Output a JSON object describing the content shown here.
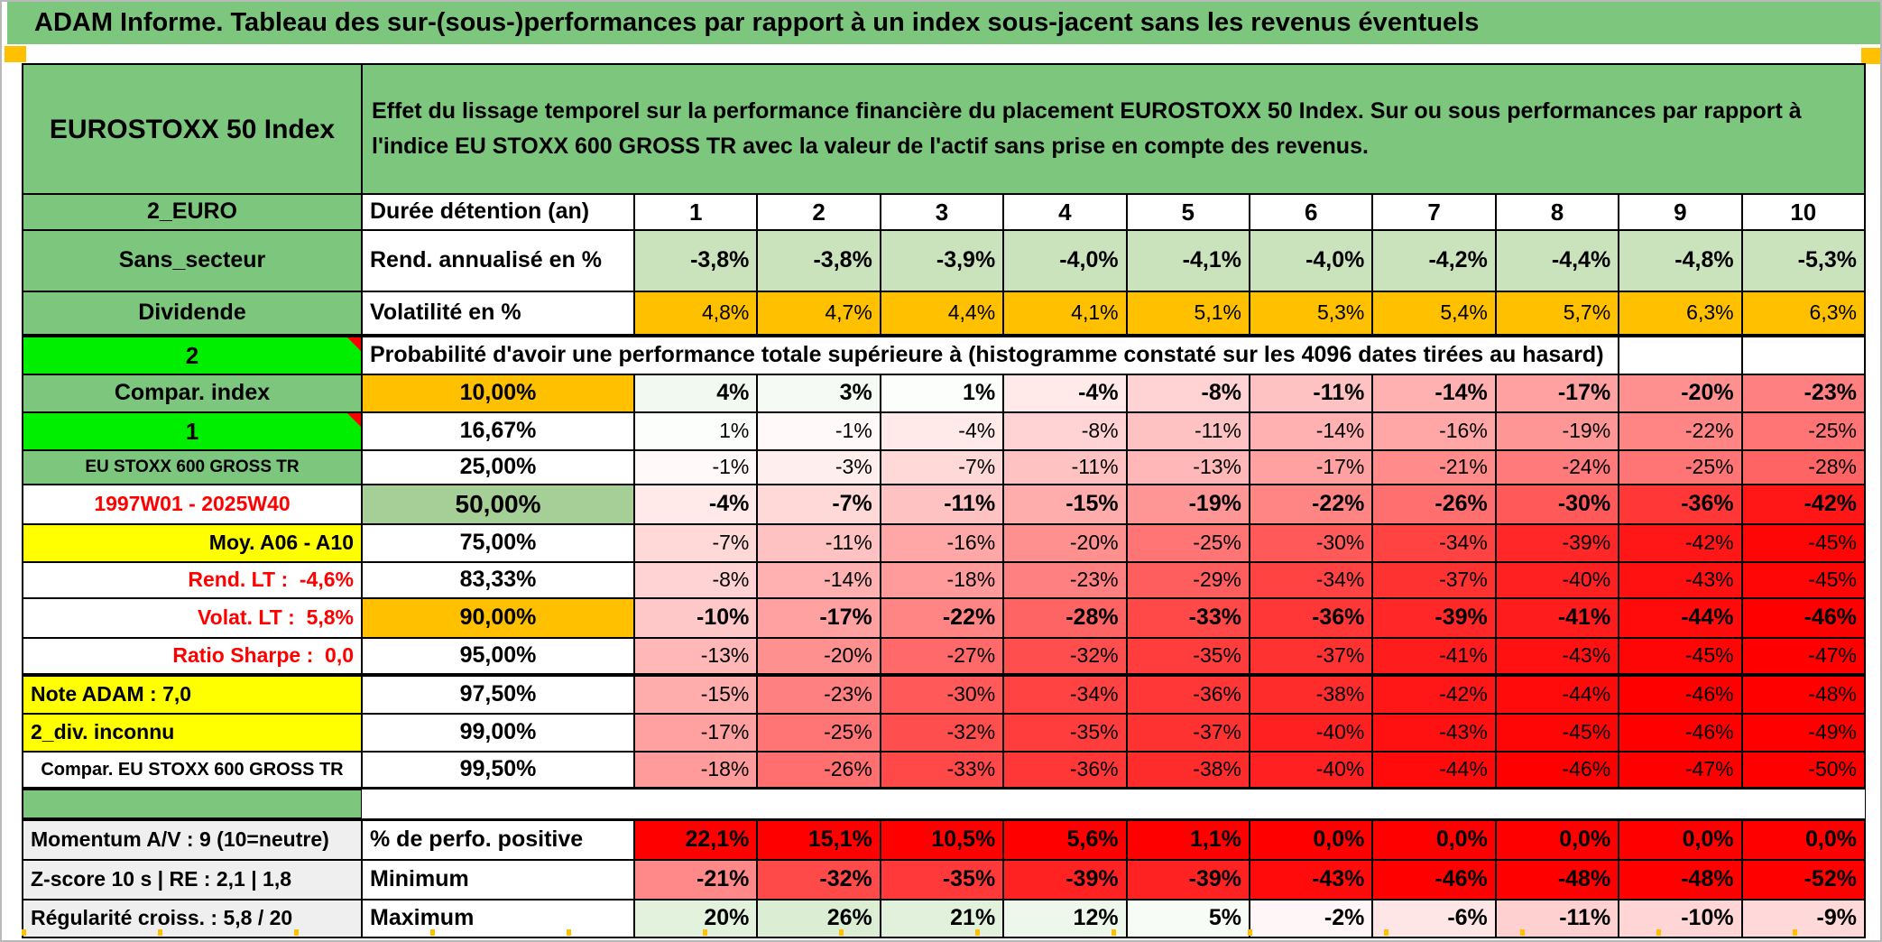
{
  "title": "ADAM Informe. Tableau des sur-(sous-)performances par rapport à un index sous-jacent sans les revenus éventuels",
  "palette": {
    "header_green": "#7DC67E",
    "light_green": "#CAE3BC",
    "mid_green": "#A6CF97",
    "bright_green": "#00EE00",
    "orange": "#FFC000",
    "yellow": "#FFFF00",
    "red": "#FF0000",
    "gray_label": "#EFEFEF"
  },
  "table": {
    "index_name": "EUROSTOXX 50 Index",
    "description": "Effet du lissage temporel sur la performance financière du placement EUROSTOXX 50 Index. Sur ou sous performances par rapport à l'indice EU STOXX 600 GROSS TR avec la valeur de l'actif sans prise en compte des revenus.",
    "years_header": {
      "a": "2_EURO",
      "b": "Durée détention (an)",
      "years": [
        "1",
        "2",
        "3",
        "4",
        "5",
        "6",
        "7",
        "8",
        "9",
        "10"
      ]
    },
    "stat_rows": [
      {
        "a": "Sans_secteur",
        "b": "Rend. annualisé en %",
        "values": [
          "-3,8%",
          "-3,8%",
          "-3,9%",
          "-4,0%",
          "-4,1%",
          "-4,0%",
          "-4,2%",
          "-4,4%",
          "-4,8%",
          "-5,3%"
        ]
      },
      {
        "a": "Dividende",
        "b": "Volatilité en %",
        "values": [
          "4,8%",
          "4,7%",
          "4,4%",
          "4,1%",
          "5,1%",
          "5,3%",
          "5,4%",
          "5,7%",
          "6,3%",
          "6,3%"
        ]
      }
    ],
    "prob_banner": {
      "a": "2",
      "text": "Probabilité d'avoir une performance totale supérieure à (histogramme constaté sur les 4096 dates tirées au hasard)"
    },
    "prob_rows": [
      {
        "a": "Compar. index",
        "b": "10,00%",
        "values": [
          4,
          3,
          1,
          -4,
          -8,
          -11,
          -14,
          -17,
          -20,
          -23
        ]
      },
      {
        "a": "1",
        "b": "16,67%",
        "values": [
          1,
          -1,
          -4,
          -8,
          -11,
          -14,
          -16,
          -19,
          -22,
          -25
        ]
      },
      {
        "a": "EU STOXX 600 GROSS TR",
        "b": "25,00%",
        "values": [
          -1,
          -3,
          -7,
          -11,
          -13,
          -17,
          -21,
          -24,
          -25,
          -28
        ]
      },
      {
        "a": "1997W01 - 2025W40",
        "b": "50,00%",
        "values": [
          -4,
          -7,
          -11,
          -15,
          -19,
          -22,
          -26,
          -30,
          -36,
          -42
        ]
      },
      {
        "a": "Moy. A06 - A10",
        "b": "75,00%",
        "values": [
          -7,
          -11,
          -16,
          -20,
          -25,
          -30,
          -34,
          -39,
          -42,
          -45
        ]
      },
      {
        "a": "Rend. LT :  -4,6%",
        "b": "83,33%",
        "values": [
          -8,
          -14,
          -18,
          -23,
          -29,
          -34,
          -37,
          -40,
          -43,
          -45
        ]
      },
      {
        "a": "Volat. LT :  5,8%",
        "b": "90,00%",
        "values": [
          -10,
          -17,
          -22,
          -28,
          -33,
          -36,
          -39,
          -41,
          -44,
          -46
        ]
      },
      {
        "a": "Ratio Sharpe :  0,0",
        "b": "95,00%",
        "values": [
          -13,
          -20,
          -27,
          -32,
          -35,
          -37,
          -41,
          -43,
          -45,
          -47
        ]
      },
      {
        "a": "Note ADAM : 7,0",
        "b": "97,50%",
        "values": [
          -15,
          -23,
          -30,
          -34,
          -36,
          -38,
          -42,
          -44,
          -46,
          -48
        ]
      },
      {
        "a": "2_div. inconnu",
        "b": "99,00%",
        "values": [
          -17,
          -25,
          -32,
          -35,
          -37,
          -40,
          -43,
          -45,
          -46,
          -49
        ]
      },
      {
        "a": "Compar. EU STOXX 600 GROSS TR",
        "b": "99,50%",
        "values": [
          -18,
          -26,
          -33,
          -36,
          -38,
          -40,
          -44,
          -46,
          -47,
          -50
        ]
      }
    ],
    "bottom_rows": [
      {
        "a": "Momentum A/V : 9 (10=neutre)",
        "b": "% de perfo. positive",
        "display": [
          "22,1%",
          "15,1%",
          "10,5%",
          "5,6%",
          "1,1%",
          "0,0%",
          "0,0%",
          "0,0%",
          "0,0%",
          "0,0%"
        ]
      },
      {
        "a": "Z-score 10 s | RE : 2,1 | 1,8",
        "b": "Minimum",
        "values": [
          -21,
          -32,
          -35,
          -39,
          -39,
          -43,
          -46,
          -48,
          -48,
          -52
        ]
      },
      {
        "a": "Régularité croiss. : 5,8 / 20",
        "b": "Maximum",
        "values": [
          20,
          26,
          21,
          12,
          5,
          -2,
          -6,
          -11,
          -10,
          -9
        ]
      }
    ]
  }
}
